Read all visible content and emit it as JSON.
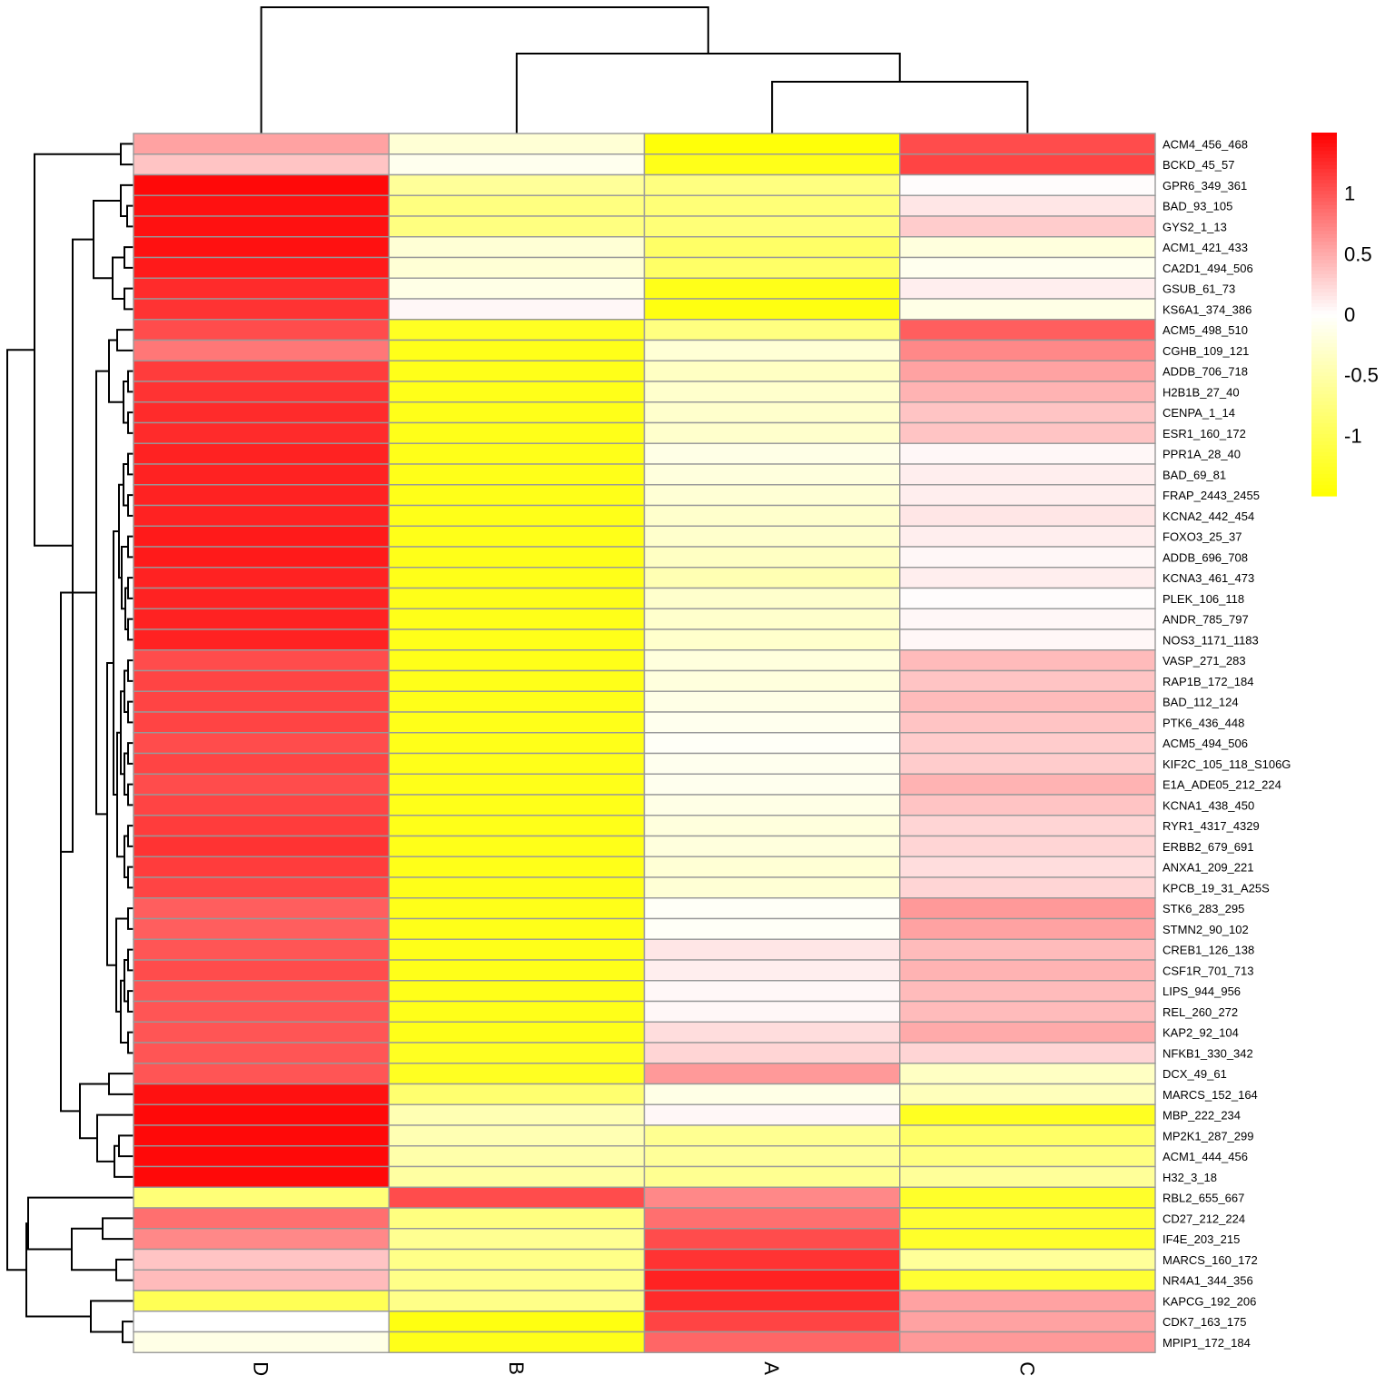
{
  "chart_data": {
    "type": "heatmap",
    "columns": [
      "D",
      "B",
      "A",
      "C"
    ],
    "rows": [
      "ACM4_456_468",
      "BCKD_45_57",
      "GPR6_349_361",
      "BAD_93_105",
      "GYS2_1_13",
      "ACM1_421_433",
      "CA2D1_494_506",
      "GSUB_61_73",
      "KS6A1_374_386",
      "ACM5_498_510",
      "CGHB_109_121",
      "ADDB_706_718",
      "H2B1B_27_40",
      "CENPA_1_14",
      "ESR1_160_172",
      "PPR1A_28_40",
      "BAD_69_81",
      "FRAP_2443_2455",
      "KCNA2_442_454",
      "FOXO3_25_37",
      "ADDB_696_708",
      "KCNA3_461_473",
      "PLEK_106_118",
      "ANDR_785_797",
      "NOS3_1171_1183",
      "VASP_271_283",
      "RAP1B_172_184",
      "BAD_112_124",
      "PTK6_436_448",
      "ACM5_494_506",
      "KIF2C_105_118_S106G",
      "E1A_ADE05_212_224",
      "KCNA1_438_450",
      "RYR1_4317_4329",
      "ERBB2_679_691",
      "ANXA1_209_221",
      "KPCB_19_31_A25S",
      "STK6_283_295",
      "STMN2_90_102",
      "CREB1_126_138",
      "CSF1R_701_713",
      "LIPS_944_956",
      "REL_260_272",
      "KAP2_92_104",
      "NFKB1_330_342",
      "DCX_49_61",
      "MARCS_152_164",
      "MBP_222_234",
      "MP2K1_287_299",
      "ACM1_444_456",
      "H32_3_18",
      "RBL2_655_667",
      "CD27_212_224",
      "IF4E_203_215",
      "MARCS_160_172",
      "NR4A1_344_356",
      "KAPCG_192_206",
      "CDK7_163_175",
      "MPIP1_172_184"
    ],
    "values": [
      [
        0.55,
        -0.25,
        -1.45,
        1.05
      ],
      [
        0.35,
        -0.1,
        -1.35,
        1.1
      ],
      [
        1.45,
        -0.6,
        -0.75,
        0.02
      ],
      [
        1.4,
        -0.75,
        -0.8,
        0.15
      ],
      [
        1.4,
        -0.75,
        -0.8,
        0.3
      ],
      [
        1.4,
        -0.25,
        -0.9,
        -0.2
      ],
      [
        1.35,
        -0.25,
        -0.9,
        -0.1
      ],
      [
        1.25,
        -0.15,
        -1.35,
        0.1
      ],
      [
        1.2,
        0.05,
        -1.4,
        -0.15
      ],
      [
        1.05,
        -1.3,
        -0.75,
        0.95
      ],
      [
        0.8,
        -1.35,
        -0.25,
        0.7
      ],
      [
        1.15,
        -1.35,
        -0.35,
        0.55
      ],
      [
        1.2,
        -1.35,
        -0.3,
        0.45
      ],
      [
        1.25,
        -1.35,
        -0.3,
        0.35
      ],
      [
        1.25,
        -1.35,
        -0.3,
        0.35
      ],
      [
        1.3,
        -1.35,
        -0.15,
        0.05
      ],
      [
        1.3,
        -1.35,
        -0.2,
        0.1
      ],
      [
        1.3,
        -1.35,
        -0.25,
        0.1
      ],
      [
        1.3,
        -1.35,
        -0.3,
        0.15
      ],
      [
        1.35,
        -1.35,
        -0.3,
        0.1
      ],
      [
        1.35,
        -1.35,
        -0.35,
        0.05
      ],
      [
        1.3,
        -1.35,
        -0.45,
        0.1
      ],
      [
        1.3,
        -1.35,
        -0.3,
        0.02
      ],
      [
        1.3,
        -1.35,
        -0.3,
        0.05
      ],
      [
        1.3,
        -1.35,
        -0.3,
        0.05
      ],
      [
        1.05,
        -1.35,
        -0.2,
        0.4
      ],
      [
        1.1,
        -1.35,
        -0.2,
        0.35
      ],
      [
        1.1,
        -1.35,
        -0.15,
        0.4
      ],
      [
        1.1,
        -1.35,
        -0.1,
        0.35
      ],
      [
        1.05,
        -1.35,
        -0.05,
        0.3
      ],
      [
        1.1,
        -1.35,
        -0.1,
        0.3
      ],
      [
        1.05,
        -1.35,
        -0.1,
        0.45
      ],
      [
        1.1,
        -1.35,
        -0.15,
        0.35
      ],
      [
        1.15,
        -1.35,
        -0.2,
        0.25
      ],
      [
        1.2,
        -1.35,
        -0.2,
        0.25
      ],
      [
        1.15,
        -1.35,
        -0.25,
        0.2
      ],
      [
        1.1,
        -1.35,
        -0.25,
        0.25
      ],
      [
        0.95,
        -1.35,
        -0.05,
        0.6
      ],
      [
        0.95,
        -1.35,
        -0.05,
        0.55
      ],
      [
        1.0,
        -1.35,
        0.15,
        0.4
      ],
      [
        1.05,
        -1.35,
        0.1,
        0.45
      ],
      [
        1.0,
        -1.35,
        0.05,
        0.4
      ],
      [
        1.0,
        -1.35,
        0.05,
        0.4
      ],
      [
        1.0,
        -1.35,
        0.2,
        0.5
      ],
      [
        1.0,
        -1.3,
        0.25,
        0.25
      ],
      [
        1.0,
        -1.3,
        0.6,
        -0.35
      ],
      [
        1.4,
        -0.85,
        -0.15,
        -0.4
      ],
      [
        1.45,
        -0.45,
        0.05,
        -1.3
      ],
      [
        1.45,
        -0.45,
        -0.65,
        -0.9
      ],
      [
        1.45,
        -0.5,
        -0.6,
        -0.75
      ],
      [
        1.45,
        -0.55,
        -0.65,
        -0.6
      ],
      [
        -0.8,
        1.05,
        0.7,
        -1.25
      ],
      [
        0.85,
        -0.75,
        0.85,
        -1.2
      ],
      [
        0.7,
        -0.65,
        1.05,
        -1.25
      ],
      [
        0.35,
        -0.7,
        1.2,
        -0.6
      ],
      [
        0.4,
        -0.7,
        1.3,
        -1.2
      ],
      [
        -1.0,
        -0.7,
        1.25,
        0.55
      ],
      [
        0.0,
        -1.4,
        1.1,
        0.55
      ],
      [
        -0.15,
        -1.35,
        0.9,
        0.6
      ]
    ],
    "color_scale": [
      "#ffff00",
      "#ffffff",
      "#ff0000"
    ],
    "legend_ticks": [
      "1",
      "0.5",
      "0",
      "-0.5",
      "-1"
    ],
    "legend_tick_values": [
      1,
      0.5,
      0,
      -0.5,
      -1
    ],
    "legend_range": [
      -1.5,
      1.5
    ],
    "legend_position": "top-right",
    "cell_border_color": "#999999",
    "dendrograms": {
      "columns": "top",
      "rows": "left"
    }
  }
}
